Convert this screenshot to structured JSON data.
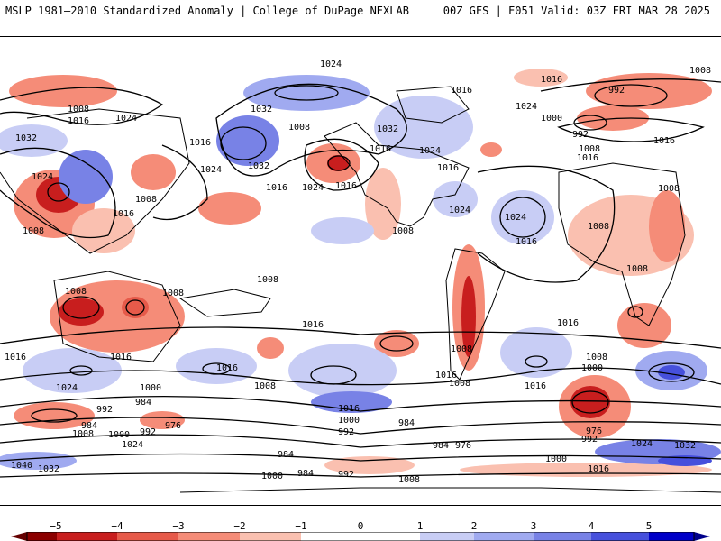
{
  "header": {
    "left": "MSLP 1981–2010 Standardized Anomaly | College of DuPage NEXLAB",
    "right": "00Z GFS | F051 Valid: 03Z FRI MAR 28 2025"
  },
  "map": {
    "isobar_labels": [
      "1024",
      "1008",
      "1016",
      "1032",
      "1000",
      "992",
      "984",
      "976",
      "1040"
    ],
    "colors": {
      "neg5": "#8b0000",
      "neg4": "#c81e1e",
      "neg3": "#e65a4a",
      "neg2": "#f58c78",
      "neg1": "#fac0b0",
      "pos1": "#c8cdf5",
      "pos2": "#a0aaf0",
      "pos3": "#7882e6",
      "pos4": "#4650dc",
      "pos5": "#0000c8"
    }
  },
  "colorbar": {
    "ticks": [
      "−5",
      "−4",
      "−3",
      "−2",
      "−1",
      "0",
      "1",
      "2",
      "3",
      "4",
      "5"
    ]
  }
}
